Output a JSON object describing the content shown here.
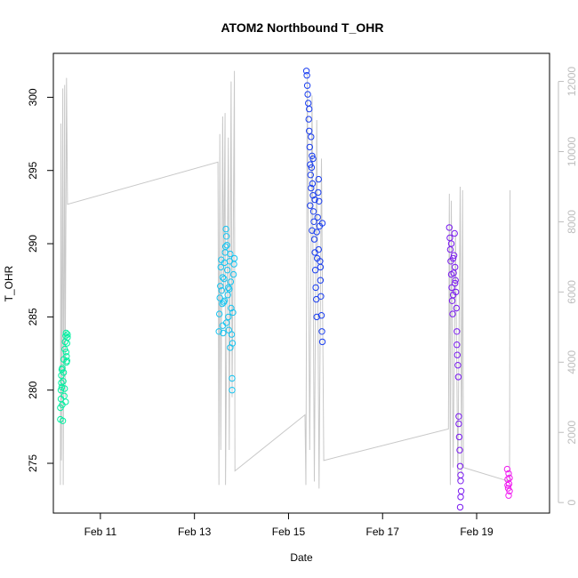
{
  "chart_data": {
    "type": "scatter",
    "title": "ATOM2 Northbound T_OHR",
    "xlabel": "Date",
    "ylabel": "T_OHR",
    "y2label": "",
    "x_unit": "days (Feb)",
    "xlim": [
      10.0,
      20.55
    ],
    "ylim": [
      271.6,
      303.0
    ],
    "y2lim": [
      -300,
      12800
    ],
    "xticks": [
      {
        "value": 11,
        "label": "Feb 11"
      },
      {
        "value": 13,
        "label": "Feb 13"
      },
      {
        "value": 15,
        "label": "Feb 15"
      },
      {
        "value": 17,
        "label": "Feb 17"
      },
      {
        "value": 19,
        "label": "Feb 19"
      }
    ],
    "yticks": [
      275,
      280,
      285,
      290,
      295,
      300
    ],
    "y2ticks": [
      0,
      2000,
      4000,
      6000,
      8000,
      10000,
      12000
    ],
    "grid": false,
    "legend": "none",
    "colors": {
      "axis": "#000000",
      "secondary_axis": "#bdbdbd",
      "secondary_line": "#c8c8c8"
    },
    "series": [
      {
        "color": "#00f0a0",
        "points": [
          [
            10.15,
            278.0
          ],
          [
            10.15,
            278.8
          ],
          [
            10.16,
            279.4
          ],
          [
            10.16,
            280.0
          ],
          [
            10.17,
            280.5
          ],
          [
            10.17,
            281.0
          ],
          [
            10.18,
            281.4
          ],
          [
            10.18,
            280.2
          ],
          [
            10.19,
            279.0
          ],
          [
            10.2,
            277.9
          ],
          [
            10.21,
            280.6
          ],
          [
            10.22,
            281.2
          ],
          [
            10.22,
            282.1
          ],
          [
            10.24,
            282.8
          ],
          [
            10.25,
            283.3
          ],
          [
            10.26,
            283.7
          ],
          [
            10.27,
            282.6
          ],
          [
            10.28,
            281.9
          ],
          [
            10.29,
            283.2
          ],
          [
            10.3,
            283.8
          ],
          [
            10.24,
            280.1
          ],
          [
            10.26,
            279.2
          ],
          [
            10.28,
            282.3
          ],
          [
            10.3,
            283.6
          ],
          [
            10.19,
            281.5
          ],
          [
            10.23,
            279.6
          ],
          [
            10.27,
            283.9
          ],
          [
            10.29,
            282.0
          ]
        ]
      },
      {
        "color": "#17c4f0",
        "points": [
          [
            13.52,
            284.0
          ],
          [
            13.53,
            285.2
          ],
          [
            13.54,
            286.3
          ],
          [
            13.55,
            287.1
          ],
          [
            13.56,
            288.4
          ],
          [
            13.57,
            288.9
          ],
          [
            13.58,
            286.8
          ],
          [
            13.59,
            285.9
          ],
          [
            13.6,
            284.4
          ],
          [
            13.61,
            283.9
          ],
          [
            13.62,
            286.0
          ],
          [
            13.63,
            287.6
          ],
          [
            13.64,
            288.7
          ],
          [
            13.65,
            289.4
          ],
          [
            13.66,
            289.8
          ],
          [
            13.67,
            291.0
          ],
          [
            13.68,
            290.5
          ],
          [
            13.69,
            289.9
          ],
          [
            13.7,
            288.2
          ],
          [
            13.71,
            286.5
          ],
          [
            13.72,
            285.0
          ],
          [
            13.73,
            284.1
          ],
          [
            13.74,
            286.9
          ],
          [
            13.75,
            288.8
          ],
          [
            13.76,
            289.3
          ],
          [
            13.77,
            287.4
          ],
          [
            13.78,
            285.6
          ],
          [
            13.79,
            283.8
          ],
          [
            13.8,
            280.8
          ],
          [
            13.8,
            280.0
          ],
          [
            13.81,
            283.2
          ],
          [
            13.82,
            285.3
          ],
          [
            13.83,
            287.9
          ],
          [
            13.84,
            288.6
          ],
          [
            13.85,
            289.0
          ],
          [
            13.6,
            287.7
          ],
          [
            13.64,
            286.1
          ],
          [
            13.68,
            284.6
          ],
          [
            13.72,
            287.0
          ],
          [
            13.76,
            282.9
          ]
        ]
      },
      {
        "color": "#1a3ef0",
        "points": [
          [
            15.38,
            301.8
          ],
          [
            15.39,
            301.5
          ],
          [
            15.4,
            300.8
          ],
          [
            15.41,
            300.2
          ],
          [
            15.42,
            299.6
          ],
          [
            15.43,
            298.5
          ],
          [
            15.44,
            297.7
          ],
          [
            15.45,
            296.6
          ],
          [
            15.46,
            295.4
          ],
          [
            15.47,
            294.7
          ],
          [
            15.48,
            293.8
          ],
          [
            15.49,
            295.2
          ],
          [
            15.5,
            296.0
          ],
          [
            15.51,
            294.1
          ],
          [
            15.52,
            293.3
          ],
          [
            15.53,
            292.2
          ],
          [
            15.54,
            291.5
          ],
          [
            15.55,
            290.3
          ],
          [
            15.56,
            289.4
          ],
          [
            15.57,
            288.2
          ],
          [
            15.58,
            287.0
          ],
          [
            15.59,
            286.2
          ],
          [
            15.6,
            285.0
          ],
          [
            15.61,
            289.0
          ],
          [
            15.62,
            291.8
          ],
          [
            15.63,
            293.5
          ],
          [
            15.64,
            294.4
          ],
          [
            15.65,
            292.9
          ],
          [
            15.66,
            291.2
          ],
          [
            15.67,
            288.8
          ],
          [
            15.68,
            287.5
          ],
          [
            15.69,
            286.4
          ],
          [
            15.7,
            285.1
          ],
          [
            15.71,
            284.0
          ],
          [
            15.72,
            283.3
          ],
          [
            15.44,
            299.2
          ],
          [
            15.48,
            297.3
          ],
          [
            15.52,
            295.8
          ],
          [
            15.56,
            293.0
          ],
          [
            15.6,
            290.8
          ],
          [
            15.64,
            289.6
          ],
          [
            15.68,
            288.4
          ],
          [
            15.72,
            291.4
          ],
          [
            15.46,
            292.6
          ],
          [
            15.5,
            290.9
          ]
        ]
      },
      {
        "color": "#7a1af0",
        "points": [
          [
            18.42,
            291.1
          ],
          [
            18.43,
            290.4
          ],
          [
            18.44,
            289.6
          ],
          [
            18.45,
            288.8
          ],
          [
            18.46,
            287.9
          ],
          [
            18.47,
            287.0
          ],
          [
            18.48,
            286.1
          ],
          [
            18.49,
            285.2
          ],
          [
            18.5,
            286.5
          ],
          [
            18.51,
            288.0
          ],
          [
            18.52,
            289.2
          ],
          [
            18.53,
            290.7
          ],
          [
            18.54,
            288.4
          ],
          [
            18.55,
            287.5
          ],
          [
            18.56,
            286.7
          ],
          [
            18.57,
            285.6
          ],
          [
            18.58,
            283.1
          ],
          [
            18.59,
            282.4
          ],
          [
            18.6,
            281.7
          ],
          [
            18.61,
            280.9
          ],
          [
            18.62,
            277.7
          ],
          [
            18.63,
            276.8
          ],
          [
            18.64,
            275.9
          ],
          [
            18.65,
            274.8
          ],
          [
            18.66,
            273.8
          ],
          [
            18.67,
            273.1
          ],
          [
            18.66,
            272.7
          ],
          [
            18.65,
            272.0
          ],
          [
            18.46,
            290.0
          ],
          [
            18.5,
            289.0
          ],
          [
            18.54,
            287.3
          ],
          [
            18.58,
            284.0
          ],
          [
            18.62,
            278.2
          ],
          [
            18.66,
            274.2
          ]
        ]
      },
      {
        "color": "#f01af0",
        "points": [
          [
            19.65,
            274.6
          ],
          [
            19.66,
            273.9
          ],
          [
            19.67,
            273.3
          ],
          [
            19.68,
            272.8
          ],
          [
            19.69,
            273.6
          ],
          [
            19.7,
            274.0
          ],
          [
            19.68,
            274.3
          ],
          [
            19.66,
            273.5
          ],
          [
            19.7,
            273.1
          ]
        ]
      }
    ],
    "secondary_line": [
      [
        10.15,
        500
      ],
      [
        10.16,
        10800
      ],
      [
        10.17,
        1200
      ],
      [
        10.2,
        11800
      ],
      [
        10.21,
        500
      ],
      [
        10.24,
        11900
      ],
      [
        10.25,
        3000
      ],
      [
        10.28,
        12100
      ],
      [
        10.3,
        8500
      ],
      [
        13.5,
        9700
      ],
      [
        13.52,
        500
      ],
      [
        13.54,
        10500
      ],
      [
        13.56,
        1500
      ],
      [
        13.6,
        11000
      ],
      [
        13.62,
        6000
      ],
      [
        13.65,
        11100
      ],
      [
        13.66,
        500
      ],
      [
        13.72,
        10400
      ],
      [
        13.74,
        1500
      ],
      [
        13.78,
        12000
      ],
      [
        13.8,
        3000
      ],
      [
        13.85,
        12300
      ],
      [
        13.86,
        900
      ],
      [
        15.35,
        2500
      ],
      [
        15.37,
        500
      ],
      [
        15.4,
        12200
      ],
      [
        15.45,
        1500
      ],
      [
        15.5,
        11600
      ],
      [
        15.55,
        600
      ],
      [
        15.6,
        10900
      ],
      [
        15.65,
        400
      ],
      [
        15.7,
        9800
      ],
      [
        15.75,
        1200
      ],
      [
        18.4,
        2100
      ],
      [
        18.42,
        8800
      ],
      [
        18.44,
        500
      ],
      [
        18.46,
        8600
      ],
      [
        18.5,
        1000
      ],
      [
        18.55,
        7700
      ],
      [
        18.6,
        600
      ],
      [
        18.65,
        9000
      ],
      [
        18.68,
        800
      ],
      [
        18.7,
        8900
      ],
      [
        18.72,
        1000
      ],
      [
        19.7,
        600
      ],
      [
        19.71,
        8900
      ]
    ]
  }
}
